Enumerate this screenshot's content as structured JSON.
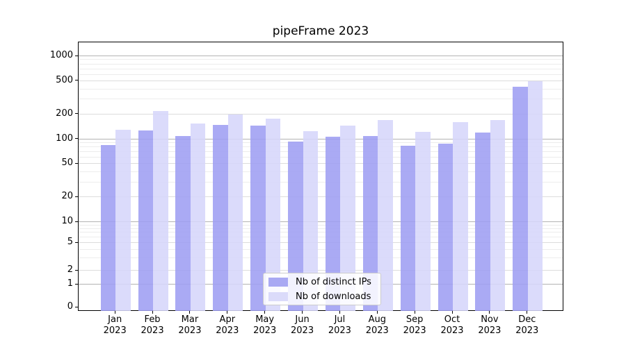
{
  "title": "pipeFrame 2023",
  "colors": {
    "ips_bar": "#9e9ef2",
    "downloads_bar": "#d6d6fa",
    "ips_swatch": "#a9a9f3",
    "downloads_swatch": "#dbdbfa",
    "grid_major": "#b3b3b3",
    "grid_mid": "#dcdcdc",
    "grid_minor": "#ececec",
    "axis": "#000000"
  },
  "legend": {
    "items": [
      {
        "label": "Nb of distinct IPs",
        "series": "ips"
      },
      {
        "label": "Nb of downloads",
        "series": "downloads"
      }
    ]
  },
  "y_axis": {
    "tick_values": [
      0,
      1,
      2,
      5,
      10,
      20,
      50,
      100,
      200,
      500,
      1000
    ],
    "tick_labels": [
      "0",
      "1",
      "2",
      "5",
      "10",
      "20",
      "50",
      "100",
      "200",
      "500",
      "1000"
    ]
  },
  "chart_data": {
    "type": "bar",
    "title": "pipeFrame 2023",
    "categories": [
      "Jan 2023",
      "Feb 2023",
      "Mar 2023",
      "Apr 2023",
      "May 2023",
      "Jun 2023",
      "Jul 2023",
      "Aug 2023",
      "Sep 2023",
      "Oct 2023",
      "Nov 2023",
      "Dec 2023"
    ],
    "series": [
      {
        "name": "Nb of distinct IPs",
        "values": [
          85,
          128,
          109,
          148,
          146,
          94,
          107,
          110,
          84,
          89,
          120,
          430
        ]
      },
      {
        "name": "Nb of downloads",
        "values": [
          130,
          220,
          153,
          200,
          177,
          124,
          145,
          170,
          122,
          161,
          170,
          500
        ]
      }
    ],
    "xlabel": "",
    "ylabel": "",
    "yscale": "symlog",
    "ylim": [
      0,
      1470
    ],
    "y_ticks": [
      0,
      1,
      2,
      5,
      10,
      20,
      50,
      100,
      200,
      500,
      1000
    ],
    "grid": true,
    "legend_position": "lower center"
  }
}
